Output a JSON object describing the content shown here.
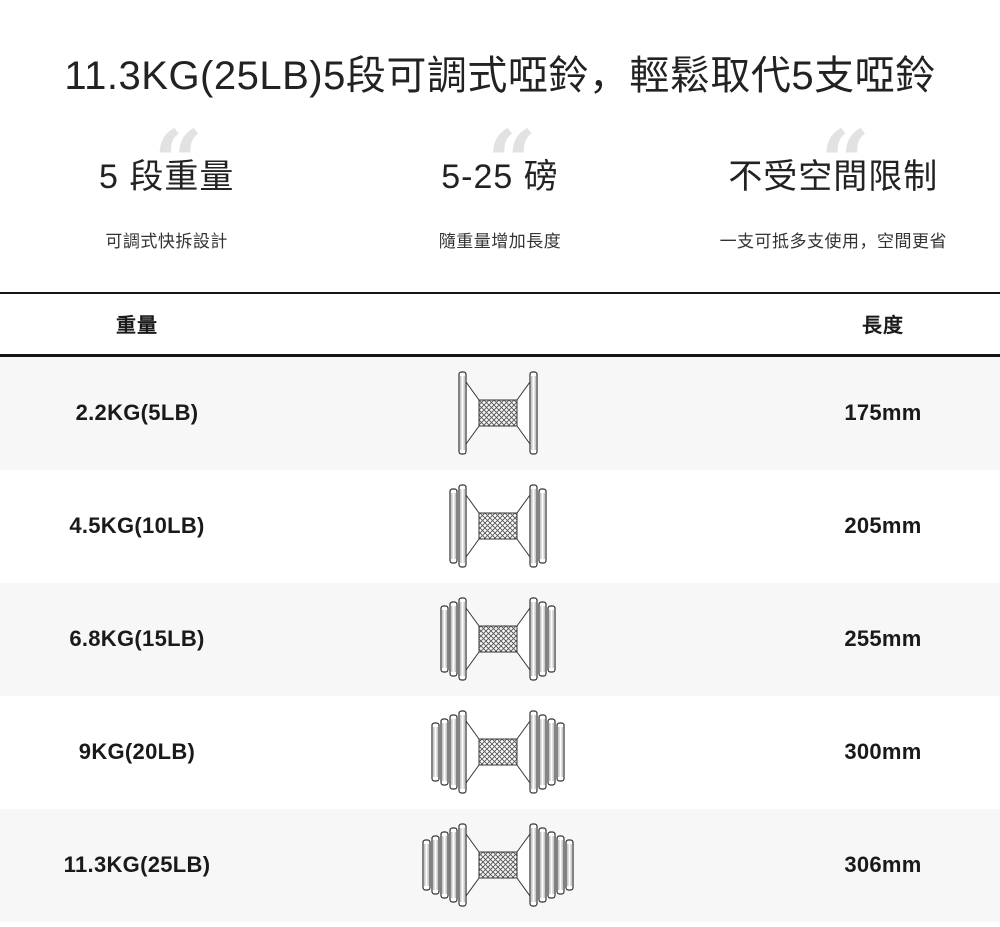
{
  "page": {
    "title": "11.3KG(25LB)5段可調式啞鈴，輕鬆取代5支啞鈴"
  },
  "decorations": {
    "quote_glyph": "“",
    "quote_color": "#e2e2e2"
  },
  "colors": {
    "text_dark": "#222222",
    "table_text": "#1a1a1a",
    "row_alt_bg": "#f7f7f7",
    "rule_color": "#151515",
    "icon_stroke": "#333333"
  },
  "features": [
    {
      "title": "5 段重量",
      "subtitle": "可調式快拆設計"
    },
    {
      "title": "5-25 磅",
      "subtitle": "隨重量增加長度"
    },
    {
      "title": "不受空間限制",
      "subtitle": "一支可抵多支使用，空間更省"
    }
  ],
  "table": {
    "headers": {
      "weight": "重量",
      "length": "長度"
    },
    "rows": [
      {
        "weight": "2.2KG(5LB)",
        "length": "175mm",
        "icon": "dumbbell-1-plate-icon",
        "plates_per_side": 1
      },
      {
        "weight": "4.5KG(10LB)",
        "length": "205mm",
        "icon": "dumbbell-2-plates-icon",
        "plates_per_side": 2
      },
      {
        "weight": "6.8KG(15LB)",
        "length": "255mm",
        "icon": "dumbbell-3-plates-icon",
        "plates_per_side": 3
      },
      {
        "weight": "9KG(20LB)",
        "length": "300mm",
        "icon": "dumbbell-4-plates-icon",
        "plates_per_side": 4
      },
      {
        "weight": "11.3KG(25LB)",
        "length": "306mm",
        "icon": "dumbbell-5-plates-icon",
        "plates_per_side": 5
      }
    ]
  }
}
